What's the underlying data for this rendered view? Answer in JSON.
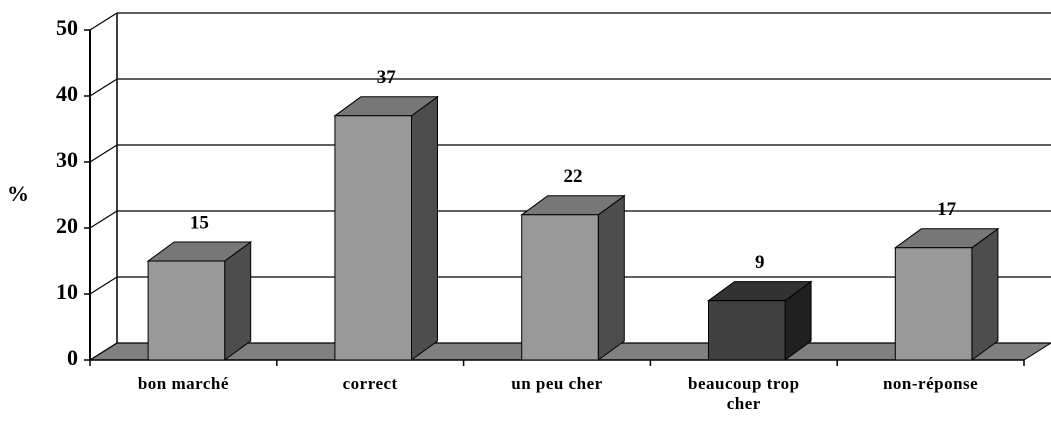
{
  "chart_data": {
    "type": "bar3d",
    "y_label": "%",
    "categories": [
      "bon marché",
      "correct",
      "un peu cher",
      "beaucoup trop cher",
      "non-réponse"
    ],
    "values": [
      15,
      37,
      22,
      9,
      17
    ],
    "colors": [
      "#999999",
      "#999999",
      "#999999",
      "#404040",
      "#999999"
    ],
    "ylim": [
      0,
      50
    ],
    "yticks": [
      0,
      10,
      20,
      30,
      40,
      50
    ],
    "grid": true
  }
}
